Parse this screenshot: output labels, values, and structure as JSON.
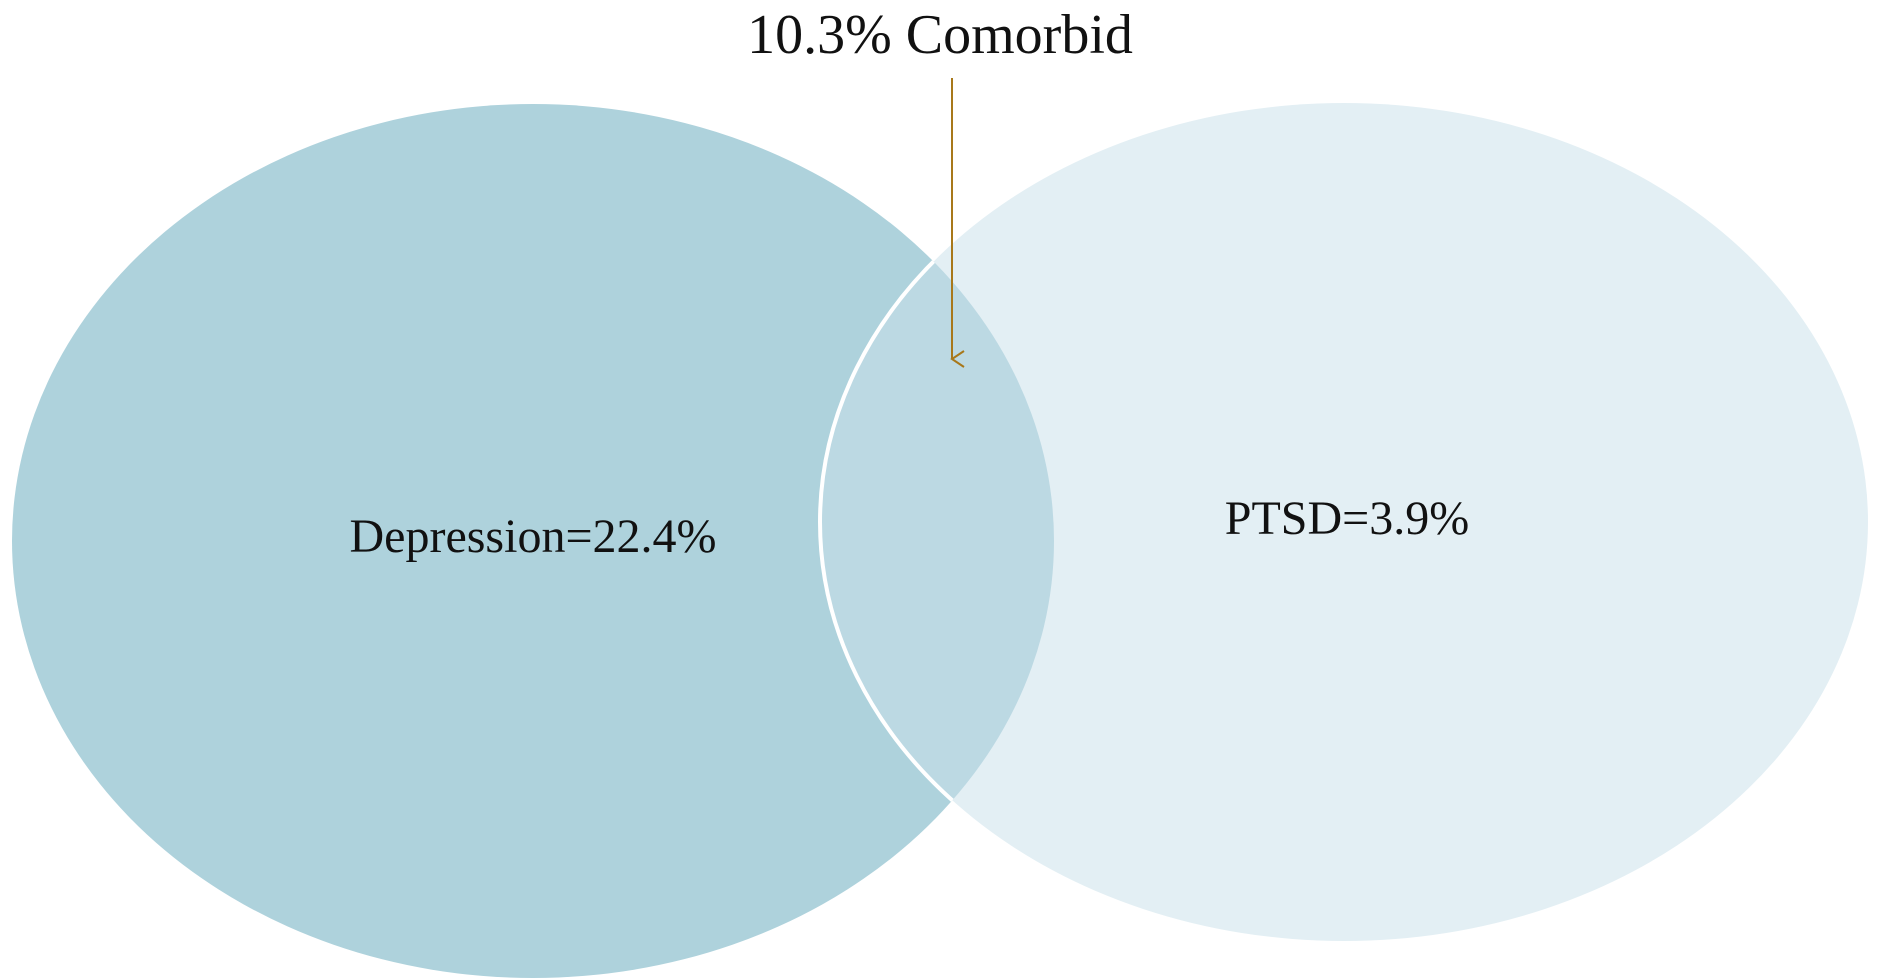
{
  "title": "10.3% Comorbid",
  "sets": [
    {
      "label": "Depression=22.4%"
    },
    {
      "label": "PTSD=3.9%"
    }
  ]
}
